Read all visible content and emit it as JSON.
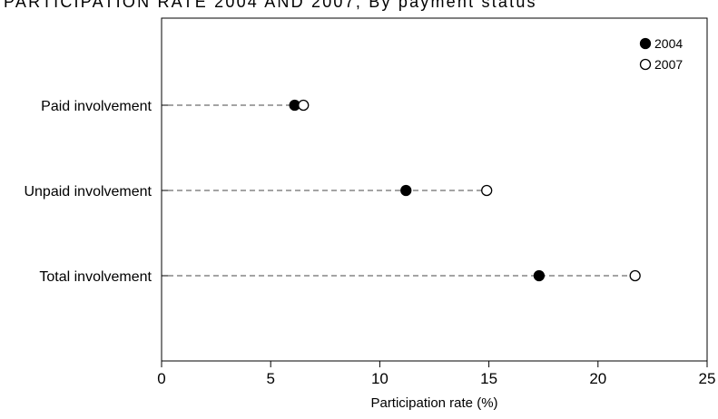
{
  "chart_data": {
    "type": "scatter",
    "subtype": "dot-plot",
    "title": "PARTICIPATION RATE 2004 AND 2007, By payment status",
    "xlabel": "Participation rate (%)",
    "ylabel": "",
    "xlim": [
      0,
      25
    ],
    "xticks": [
      0,
      5,
      10,
      15,
      20,
      25
    ],
    "xtick_labels": [
      "0",
      "5",
      "10",
      "15",
      "20",
      "25"
    ],
    "categories": [
      "Paid involvement",
      "Unpaid involvement",
      "Total involvement"
    ],
    "series": [
      {
        "name": "2004",
        "marker": "filled-circle",
        "values": [
          6.1,
          11.2,
          17.3
        ]
      },
      {
        "name": "2007",
        "marker": "open-circle",
        "values": [
          6.5,
          14.9,
          21.7
        ]
      }
    ],
    "connector": "dashed line from axis to each category's points",
    "grid": false,
    "legend": "top-right",
    "colors": {
      "marker": "#000000",
      "connector": "#6e6e6e",
      "axis": "#000000"
    }
  }
}
